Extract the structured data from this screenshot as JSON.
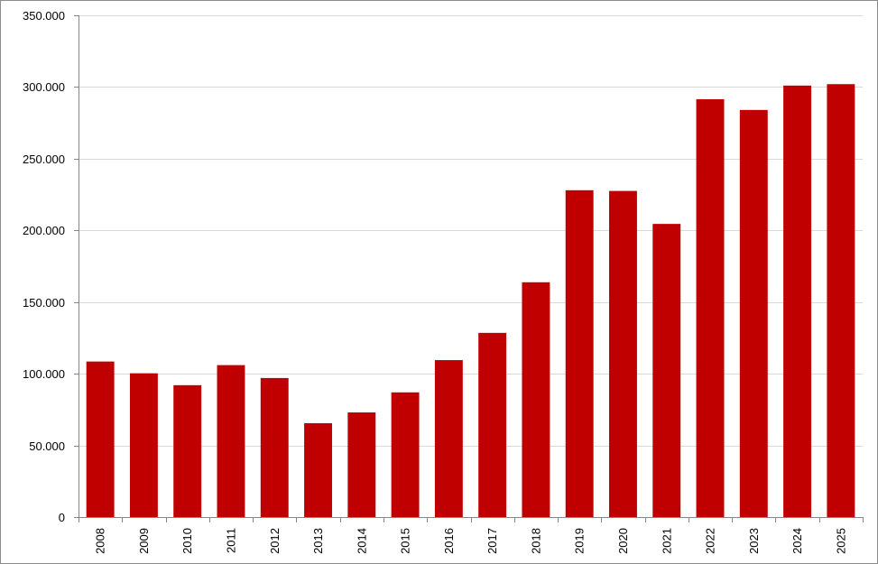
{
  "chart_data": {
    "type": "bar",
    "title": "",
    "xlabel": "",
    "ylabel": "",
    "categories": [
      "2008",
      "2009",
      "2010",
      "2011",
      "2012",
      "2013",
      "2014",
      "2015",
      "2016",
      "2017",
      "2018",
      "2019",
      "2020",
      "2021",
      "2022",
      "2023",
      "2024",
      "2025"
    ],
    "values": [
      108500,
      100300,
      92000,
      106000,
      97000,
      65500,
      73000,
      87000,
      109500,
      128500,
      163800,
      228000,
      227500,
      204500,
      291500,
      284000,
      301000,
      302000
    ],
    "ylim": [
      0,
      350000
    ],
    "yticks": [
      0,
      50000,
      100000,
      150000,
      200000,
      250000,
      300000,
      350000
    ],
    "ytick_labels": [
      "0",
      "50.000",
      "100.000",
      "150.000",
      "200.000",
      "250.000",
      "300.000",
      "350.000"
    ],
    "grid": true,
    "bar_color": "#c00000",
    "grid_color": "#d9d9d9",
    "axis_color": "#868686"
  }
}
